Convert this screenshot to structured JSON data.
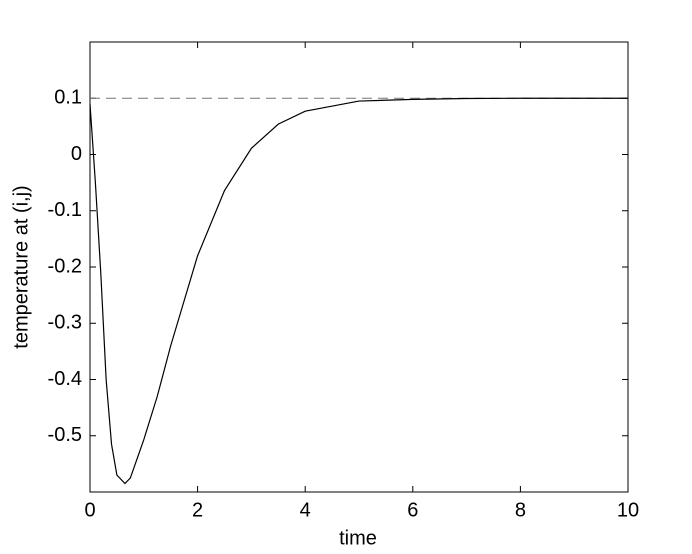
{
  "chart_data": {
    "type": "line",
    "xlabel": "time",
    "ylabel": "temperature at (i,j)",
    "x": [
      0,
      0.1,
      0.2,
      0.3,
      0.4,
      0.5,
      0.65,
      0.75,
      1,
      1.25,
      1.5,
      2,
      2.5,
      3,
      3.5,
      4,
      5,
      6,
      7,
      8,
      10
    ],
    "series": [
      {
        "color": "#000000",
        "values": [
          0.09,
          -0.05,
          -0.21,
          -0.4,
          -0.515,
          -0.57,
          -0.585,
          -0.575,
          -0.507,
          -0.43,
          -0.34,
          -0.18,
          -0.064,
          0.011,
          0.054,
          0.077,
          0.095,
          0.098,
          0.0995,
          0.1,
          0.1
        ]
      }
    ],
    "reference_line": {
      "value": 0.1,
      "color": "#777777",
      "style": "dashed"
    },
    "xlim": [
      0,
      10
    ],
    "xticks": [
      0,
      2,
      4,
      6,
      8,
      10
    ],
    "ylim": [
      -0.6,
      0.2
    ],
    "yticks": [
      -0.5,
      -0.4,
      -0.3,
      -0.2,
      -0.1,
      0,
      0.1
    ],
    "grid": false
  }
}
